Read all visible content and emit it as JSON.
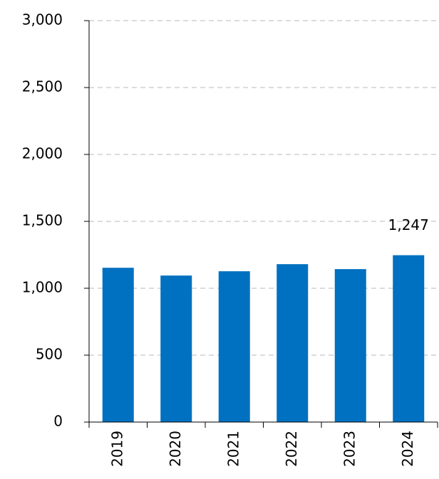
{
  "chart_data": {
    "type": "bar",
    "categories": [
      "2019",
      "2020",
      "2021",
      "2022",
      "2023",
      "2024"
    ],
    "values": [
      1153,
      1095,
      1127,
      1180,
      1143,
      1247
    ],
    "value_labels": [
      null,
      null,
      null,
      null,
      null,
      "1,247"
    ],
    "color": "#0070c0",
    "ylim": [
      0,
      3000
    ],
    "yticks": [
      0,
      500,
      {
        "value": 1000,
        "label": "1,000"
      },
      {
        "value": 1500,
        "label": "1,500"
      },
      {
        "value": 2000,
        "label": "2,000"
      },
      {
        "value": 2500,
        "label": "2,500"
      },
      {
        "value": 3000,
        "label": "3,000"
      }
    ],
    "grid": true
  }
}
